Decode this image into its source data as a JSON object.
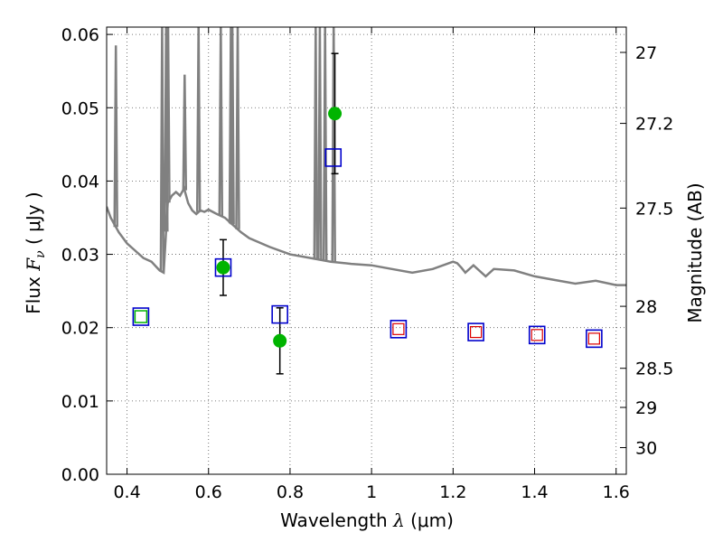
{
  "chart_data": {
    "type": "scatter",
    "xlabel": {
      "prefix": "Wavelength  ",
      "symbol": "λ",
      "unit": " (μm)"
    },
    "ylabel": {
      "prefix": "Flux  ",
      "symbol": "F",
      "subscript": "ν",
      "unit": "  ( μJy )"
    },
    "y2label": "Magnitude (AB)",
    "xlim": [
      0.35,
      1.625
    ],
    "ylim": [
      0.0,
      0.061
    ],
    "grid": true,
    "x_ticks": [
      0.4,
      0.6,
      0.8,
      1.0,
      1.2,
      1.4,
      1.6
    ],
    "x_tick_labels": [
      "0.4",
      "0.6",
      "0.8",
      "1",
      "1.2",
      "1.4",
      "1.6"
    ],
    "y_ticks": [
      0.0,
      0.01,
      0.02,
      0.03,
      0.04,
      0.05,
      0.06
    ],
    "y_tick_labels": [
      "0.00",
      "0.01",
      "0.02",
      "0.03",
      "0.04",
      "0.05",
      "0.06"
    ],
    "mag_ticks": [
      27,
      27.2,
      27.5,
      28,
      28.5,
      29,
      30
    ],
    "mag_tick_labels": [
      "27",
      "27.2",
      "27.5",
      "28",
      "28.5",
      "29",
      "30"
    ],
    "colors": {
      "sed": "#808080",
      "observed": "#00b400",
      "model_box": "#0000cc",
      "model_box_inner_green": "#00b400",
      "model_box_inner_red": "#dd0000",
      "errorbar": "#000000",
      "grid": "#555555"
    },
    "series": [
      {
        "kind": "sed_template",
        "x": [
          0.35,
          0.36,
          0.37,
          0.38,
          0.4,
          0.42,
          0.44,
          0.46,
          0.48,
          0.49,
          0.5,
          0.51,
          0.52,
          0.53,
          0.54,
          0.55,
          0.56,
          0.57,
          0.58,
          0.59,
          0.6,
          0.62,
          0.64,
          0.66,
          0.68,
          0.7,
          0.75,
          0.8,
          0.85,
          0.9,
          0.95,
          1.0,
          1.05,
          1.1,
          1.15,
          1.2,
          1.21,
          1.22,
          1.23,
          1.25,
          1.28,
          1.3,
          1.35,
          1.4,
          1.45,
          1.5,
          1.55,
          1.6,
          1.625
        ],
        "y": [
          0.0365,
          0.035,
          0.034,
          0.033,
          0.0315,
          0.0305,
          0.0295,
          0.029,
          0.0278,
          0.0275,
          0.037,
          0.038,
          0.0385,
          0.038,
          0.039,
          0.037,
          0.036,
          0.0355,
          0.036,
          0.0358,
          0.0361,
          0.0355,
          0.035,
          0.034,
          0.033,
          0.0322,
          0.031,
          0.03,
          0.0295,
          0.029,
          0.0287,
          0.0285,
          0.028,
          0.0275,
          0.028,
          0.029,
          0.0288,
          0.0282,
          0.0275,
          0.0285,
          0.027,
          0.028,
          0.0278,
          0.027,
          0.0265,
          0.026,
          0.0264,
          0.0258,
          0.0258
        ]
      },
      {
        "kind": "sed_emission_lines",
        "lines": [
          {
            "x": 0.3727,
            "peak": 0.0585
          },
          {
            "x": 0.4861,
            "peak": 0.0615
          },
          {
            "x": 0.4959,
            "peak": 0.0615
          },
          {
            "x": 0.5007,
            "peak": 0.0615
          },
          {
            "x": 0.5413,
            "peak": 0.0545
          },
          {
            "x": 0.5755,
            "peak": 0.0615
          },
          {
            "x": 0.63,
            "peak": 0.0615
          },
          {
            "x": 0.6548,
            "peak": 0.0615
          },
          {
            "x": 0.6563,
            "peak": 0.0615
          },
          {
            "x": 0.6584,
            "peak": 0.0615
          },
          {
            "x": 0.6716,
            "peak": 0.0615
          },
          {
            "x": 0.8628,
            "peak": 0.0615
          },
          {
            "x": 0.873,
            "peak": 0.0615
          },
          {
            "x": 0.886,
            "peak": 0.0615
          },
          {
            "x": 0.9069,
            "peak": 0.0615
          }
        ]
      },
      {
        "kind": "observed_with_errors",
        "points": [
          {
            "x": 0.636,
            "y": 0.0282,
            "err": 0.0038
          },
          {
            "x": 0.775,
            "y": 0.0182,
            "err": 0.0045
          },
          {
            "x": 0.91,
            "y": 0.0492,
            "err": 0.0082
          }
        ]
      },
      {
        "kind": "model_boxes",
        "points": [
          {
            "x": 0.434,
            "y": 0.0215,
            "inner": "green"
          },
          {
            "x": 0.636,
            "y": 0.0282,
            "inner": "none"
          },
          {
            "x": 0.775,
            "y": 0.0218,
            "inner": "none"
          },
          {
            "x": 0.906,
            "y": 0.0432,
            "inner": "none"
          },
          {
            "x": 1.066,
            "y": 0.0198,
            "inner": "red"
          },
          {
            "x": 1.256,
            "y": 0.0194,
            "inner": "red"
          },
          {
            "x": 1.406,
            "y": 0.019,
            "inner": "red"
          },
          {
            "x": 1.546,
            "y": 0.0185,
            "inner": "red"
          }
        ]
      }
    ]
  }
}
